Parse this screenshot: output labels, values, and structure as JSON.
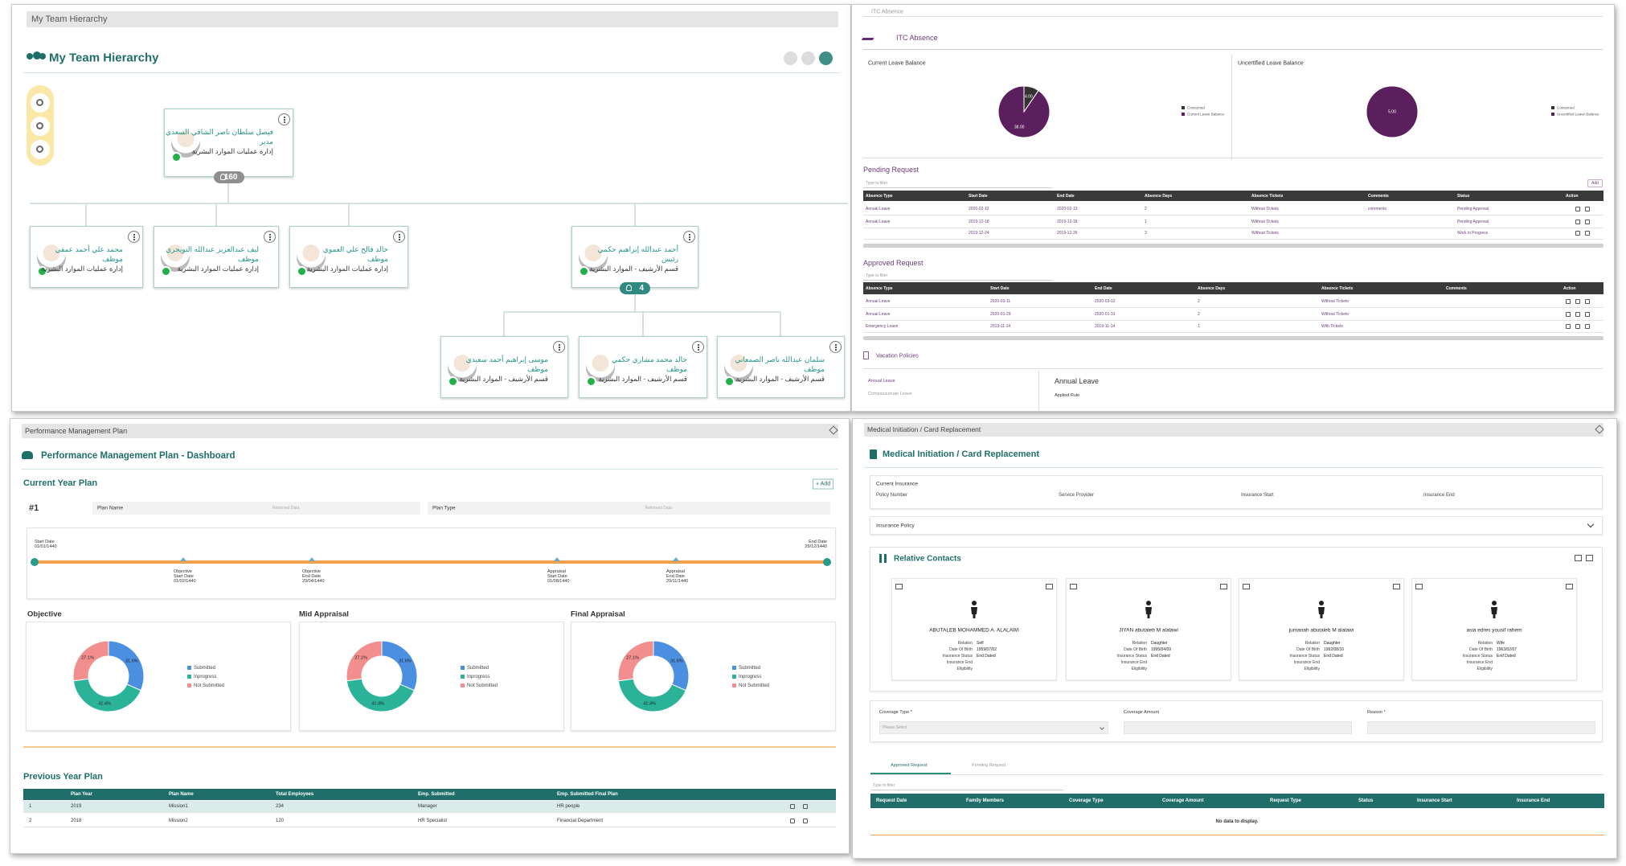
{
  "hierarchy": {
    "breadcrumb": "My Team Hierarchy",
    "title": "My Team Hierarchy",
    "root": {
      "name": "فيصل سلطان ناصر الشافي السعدي",
      "role": "مدير",
      "dept": "إدارة عمليات الموارد البشرية",
      "count": 160
    },
    "level1": [
      {
        "name": "محمد علي أحمد عمقي",
        "role": "موظف",
        "dept": "إدارة عمليات الموارد البشرية"
      },
      {
        "name": "ليف عبدالعزيز عبدالله التويجري",
        "role": "موظف",
        "dept": "إدارة عمليات الموارد البشرية"
      },
      {
        "name": "خالد فالح علي العموي",
        "role": "موظف",
        "dept": "إدارة عمليات الموارد البشرية"
      },
      {
        "name": "أحمد عبدالله إبراهيم حكمي",
        "role": "رئيس",
        "dept": "قسم الأرشيف - الموارد البشرية",
        "count": 4
      }
    ],
    "level2": [
      {
        "name": "موسى إبراهيم أحمد سعيدي",
        "role": "موظف",
        "dept": "قسم الأرشيف - الموارد البشرية"
      },
      {
        "name": "خالد محمد مشاري حكمي",
        "role": "موظف",
        "dept": "قسم الأرشيف - الموارد البشرية"
      },
      {
        "name": "سلمان عبدالله ناصر الصمعاني",
        "role": "موظف",
        "dept": "قسم الأرشيف - الموارد البشرية"
      }
    ]
  },
  "absence": {
    "breadcrumb": "ITC Absence",
    "title": "ITC Absence",
    "current_balance": {
      "type": "pie",
      "title": "Current Leave Balance",
      "categories": [
        "Consumed",
        "Current Leave Balance"
      ],
      "values": [
        4,
        38
      ],
      "value_labels": [
        "4.00",
        "38.00"
      ],
      "colors": [
        "#333333",
        "#5b1f5e"
      ]
    },
    "uncertified_balance": {
      "type": "pie",
      "title": "Uncertified Leave Balance",
      "categories": [
        "Consumed",
        "Uncertified Leave Balance"
      ],
      "values": [
        0,
        5
      ],
      "value_labels": [
        null,
        "5.00"
      ],
      "colors": [
        "#333333",
        "#5b1f5e"
      ]
    },
    "pending": {
      "title": "Pending Request",
      "filter": "Type to filter",
      "add": "Add",
      "headers": [
        "Absence Type",
        "Start Date",
        "End Date",
        "Absence Days",
        "Absence Tickets",
        "Comments",
        "Status",
        "Action"
      ],
      "rows": [
        [
          "Annual Leave",
          "2020-02-12",
          "2020-02-13",
          "2",
          "Without Tickets",
          "comments",
          "Pending Approval"
        ],
        [
          "Annual Leave",
          "2019-12-18",
          "2019-12-18",
          "1",
          "Without Tickets",
          null,
          "Pending Approval"
        ],
        [
          null,
          "2019-12-24",
          "2019-12-26",
          "3",
          "Without Tickets",
          null,
          "Work in Progress"
        ]
      ]
    },
    "approved": {
      "title": "Approved Request",
      "filter": "Type to filter",
      "headers": [
        "Absence Type",
        "Start Date",
        "End Date",
        "Absence Days",
        "Absence Tickets",
        "Comments",
        "Action"
      ],
      "rows": [
        [
          "Annual Leave",
          "2020-03-11",
          "2020-03-12",
          "2",
          "Without Tickets"
        ],
        [
          "Annual Leave",
          "2020-01-29",
          "2020-01-31",
          "2",
          "Without Tickets"
        ],
        [
          "Emergency Leave",
          "2019-11-14",
          "2019-11-14",
          "1",
          "With Tickets"
        ]
      ]
    },
    "policies": {
      "title": "Vacation Policies",
      "items": [
        "Annual Leave",
        "Compassionate Leave"
      ],
      "selected": "Annual Leave",
      "detail": "Applied Rule"
    }
  },
  "performance": {
    "breadcrumb": "Performance Management Plan",
    "title": "Performance Management Plan - Dashboard",
    "current_title": "Current Year Plan",
    "add": "+ Add",
    "plan_number": "#1",
    "fields": [
      {
        "label": "Plan Name",
        "value": "Retrieved Data"
      },
      {
        "label": "Plan Type",
        "value": "Retrieved Data"
      }
    ],
    "timeline": {
      "start": {
        "kind": "Start Date",
        "date": "01/01/1440"
      },
      "end": {
        "kind": "End Date",
        "date": "29/12/1440"
      },
      "milestones": [
        {
          "name": "Objective",
          "kind": "Start Date",
          "date": "01/02/1440"
        },
        {
          "name": "Objective",
          "kind": "End Date",
          "date": "29/04/1440"
        },
        {
          "name": "Appraisal",
          "kind": "Start Date",
          "date": "01/08/1440"
        },
        {
          "name": "Appraisal",
          "kind": "End Date",
          "date": "29/11/1440"
        }
      ]
    },
    "donuts": [
      {
        "type": "pie",
        "title": "Objective",
        "categories": [
          "Submitted",
          "Inprogress",
          "Not Submitted"
        ],
        "values": [
          31.6,
          41.4,
          27.1
        ],
        "value_labels": [
          "31.6%",
          "41.4%",
          "27.1%"
        ],
        "colors": [
          "#4a8fe0",
          "#2bb39a",
          "#f28e8e"
        ]
      },
      {
        "type": "pie",
        "title": "Mid Appraisal",
        "categories": [
          "Submitted",
          "Inprogress",
          "Not Submitted"
        ],
        "values": [
          31.6,
          41.4,
          27.1
        ],
        "value_labels": [
          "31.6%",
          "41.4%",
          "27.1%"
        ],
        "colors": [
          "#4a8fe0",
          "#2bb39a",
          "#f28e8e"
        ]
      },
      {
        "type": "pie",
        "title": "Final Appraisal",
        "categories": [
          "Submitted",
          "Inprogress",
          "Not Submitted"
        ],
        "values": [
          31.6,
          41.4,
          27.1
        ],
        "value_labels": [
          "31.6%",
          "41.4%",
          "27.1%"
        ],
        "colors": [
          "#4a8fe0",
          "#2bb39a",
          "#f28e8e"
        ]
      }
    ],
    "previous_title": "Previous Year Plan",
    "previous": {
      "headers": [
        "Plan Year",
        "Plan Name",
        "Total Employees",
        "Emp. Submitted",
        "Emp. Submitted Final Plan"
      ],
      "rows": [
        [
          "1",
          "2019",
          "Mission1",
          "234",
          "Manager",
          "HR people"
        ],
        [
          "2",
          "2018",
          "Mission2",
          "120",
          "HR Specialist",
          "Financial Department"
        ]
      ]
    }
  },
  "medical": {
    "breadcrumb": "Medical Initiation / Card Replacement",
    "title": "Medical Initiation / Card Replacement",
    "current_insurance": {
      "title": "Current Insurance",
      "fields": [
        "Policy Number",
        "Service Provider",
        "Insurance Start",
        "Insurance End"
      ]
    },
    "policy": "Insurance Policy",
    "contacts_title": "Relative Contacts",
    "detail_labels": [
      "Relation",
      "Date Of Birth",
      "Insurance Status",
      "Insurance End",
      "Eligibility"
    ],
    "contacts": [
      {
        "name": "ABUTALEB MOHAMMED A. ALALAWI",
        "details": [
          "Self",
          "1959/07/02",
          "End Dated"
        ]
      },
      {
        "name": "JIYAN abutaleb M alalawi",
        "details": [
          "Daughter",
          "1995/04/09",
          "End Dated"
        ]
      },
      {
        "name": "jumanah abutaleb M alalawi",
        "details": [
          "Daughter",
          "1992/08/10",
          "End Dated"
        ]
      },
      {
        "name": "asia edres yousif rahem",
        "details": [
          "Wife",
          "1963/02/07",
          "End Dated"
        ]
      }
    ],
    "form": {
      "coverage_type": "Coverage Type *",
      "placeholder": "Please Select",
      "coverage_amount": "Coverage Amount",
      "reason": "Reason *"
    },
    "tabs": [
      "Approved Request",
      "Pending Request"
    ],
    "filter": "Type to filter",
    "headers": [
      "Request Date",
      "Family Members",
      "Coverage Type",
      "Coverage Amount",
      "Request Type",
      "Status",
      "Insurance Start",
      "Insurance End"
    ],
    "empty": "No data to display."
  }
}
